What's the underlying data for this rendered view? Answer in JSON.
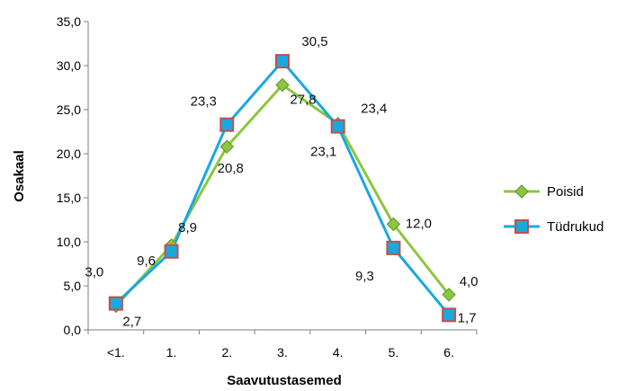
{
  "chart_data": {
    "type": "line",
    "xlabel": "Saavutustasemed",
    "ylabel": "Osakaal",
    "categories": [
      "<1.",
      "1.",
      "2.",
      "3.",
      "4.",
      "5.",
      "6."
    ],
    "ylim": [
      0,
      35
    ],
    "yticks": [
      "0,0",
      "5,0",
      "10,0",
      "15,0",
      "20,0",
      "25,0",
      "30,0",
      "35,0"
    ],
    "grid": false,
    "legend_position": "right",
    "series": [
      {
        "name": "Poisid",
        "color": "#8DC63F",
        "marker": "diamond",
        "values": [
          2.7,
          9.6,
          20.8,
          27.8,
          23.4,
          12.0,
          4.0
        ],
        "labels": [
          "2,7",
          "9,6",
          "20,8",
          "27,8",
          "23,4",
          "12,0",
          "4,0"
        ]
      },
      {
        "name": "Tüdrukud",
        "color": "#1AA8E0",
        "marker": "square",
        "values": [
          3.0,
          8.9,
          23.3,
          30.5,
          23.1,
          9.3,
          1.7
        ],
        "labels": [
          "3,0",
          "8,9",
          "23,3",
          "30,5",
          "23,1",
          "9,3",
          "1,7"
        ]
      }
    ]
  }
}
